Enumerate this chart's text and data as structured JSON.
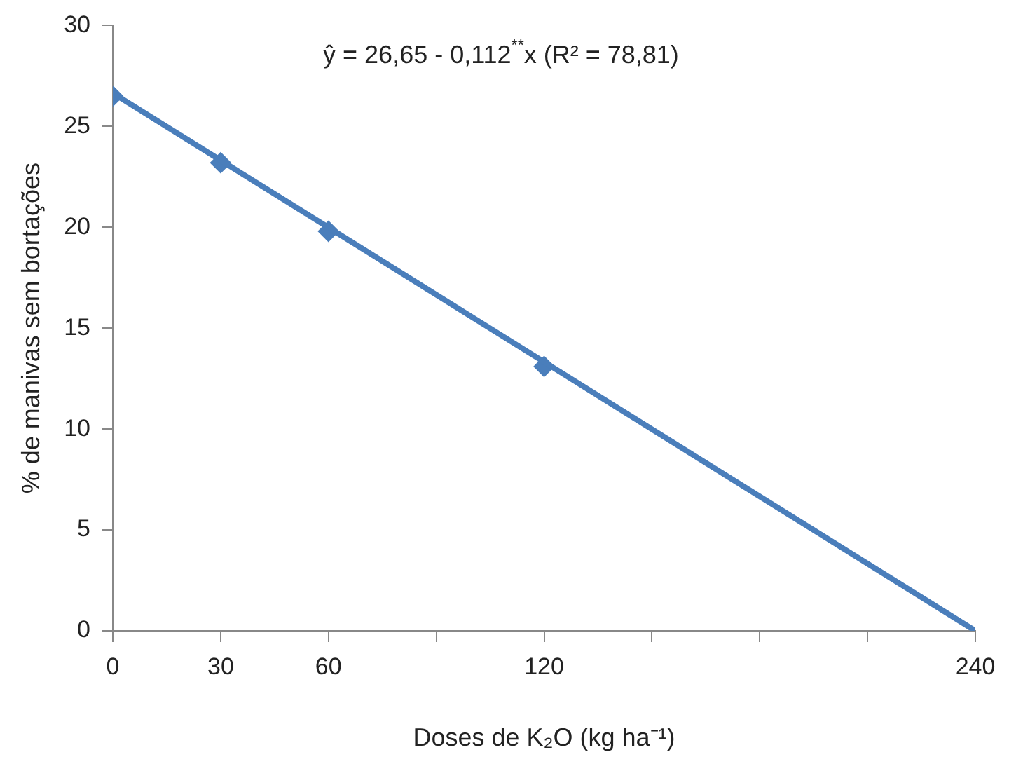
{
  "chart_data": {
    "type": "line",
    "xlabel": "Doses de K₂O (kg ha⁻¹)",
    "ylabel": "% de manivas sem bortações",
    "annotations": [
      "ŷ = 26,65 - 0,112$^{**}$x (R² = 78,81)"
    ],
    "xlim": [
      0,
      240
    ],
    "xticks": [
      0,
      30,
      60,
      {
        "value": 90,
        "label": null
      },
      120,
      {
        "value": 150,
        "label": null
      },
      {
        "value": 180,
        "label": null
      },
      {
        "value": 210,
        "label": null
      },
      240
    ],
    "ylim": [
      0,
      30
    ],
    "yticks": [
      0,
      5,
      10,
      15,
      20,
      25,
      30
    ],
    "grid": false,
    "legend": false,
    "series": [
      {
        "color": "#4a7ebb",
        "x": [
          0,
          240
        ],
        "values": [
          26.65,
          0
        ],
        "marker": "none"
      },
      {
        "type": "scatter",
        "color": "#4a7ebb",
        "x": [
          0,
          30,
          60,
          120
        ],
        "values": [
          26.5,
          23.2,
          19.8,
          13.1
        ],
        "marker": "diamond"
      }
    ]
  }
}
